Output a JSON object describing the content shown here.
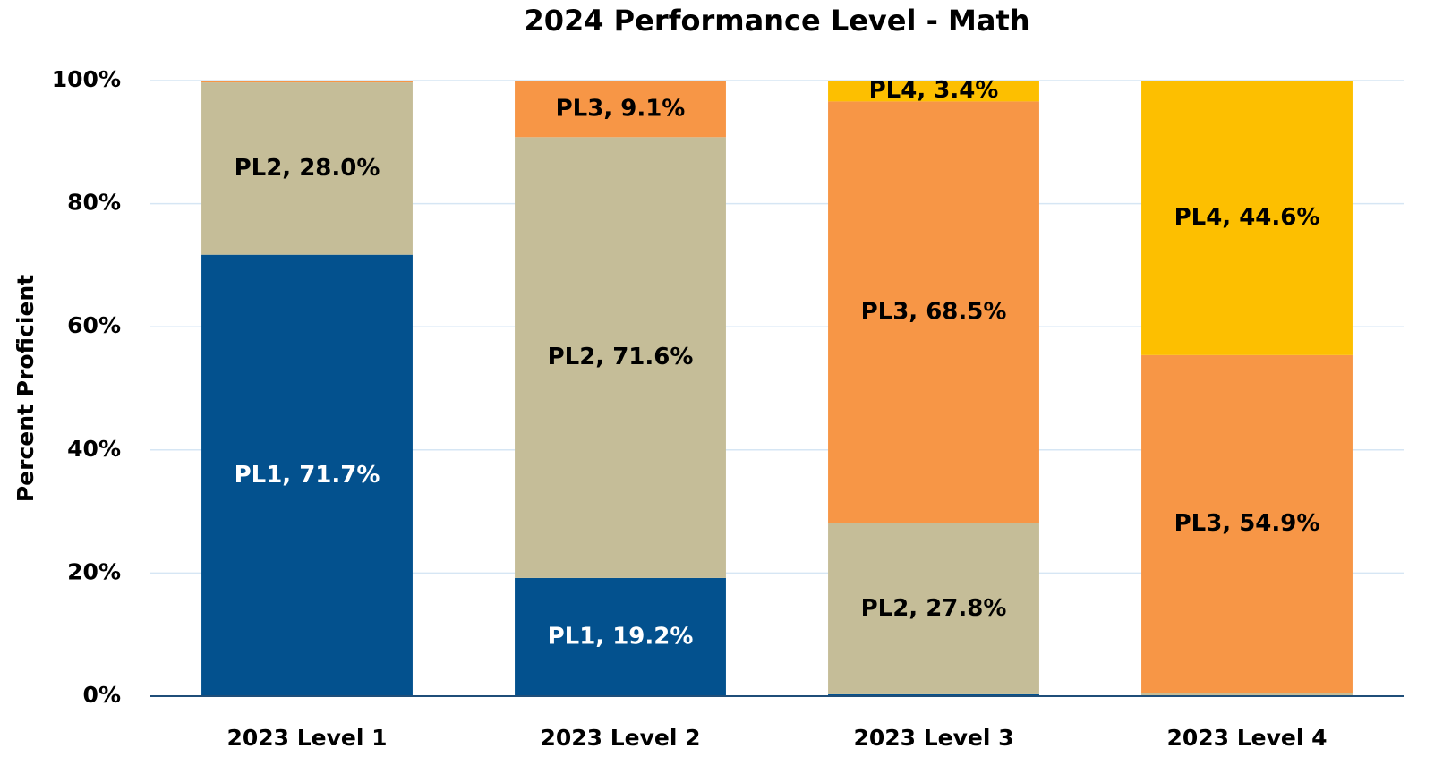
{
  "chart_data": {
    "type": "stacked_bar",
    "title": "2024 Performance Level - Math",
    "y_label": "Percent Proficient",
    "categories": [
      "2023 Level 1",
      "2023 Level 2",
      "2023 Level 3",
      "2023 Level 4"
    ],
    "series": [
      {
        "name": "PL1",
        "color": "#03518e",
        "label_color": "#ffffff",
        "values": [
          71.7,
          19.2,
          0.3,
          0.1
        ],
        "value_labels": [
          "PL1, 71.7%",
          "PL1, 19.2%",
          null,
          null
        ]
      },
      {
        "name": "PL2",
        "color": "#c5bd98",
        "label_color": "#000000",
        "values": [
          28.0,
          71.6,
          27.8,
          0.4
        ],
        "value_labels": [
          "PL2, 28.0%",
          "PL2, 71.6%",
          "PL2, 27.8%",
          null
        ]
      },
      {
        "name": "PL3",
        "color": "#f79646",
        "label_color": "#000000",
        "values": [
          0.3,
          9.1,
          68.5,
          54.9
        ],
        "value_labels": [
          null,
          "PL3, 9.1%",
          "PL3, 68.5%",
          "PL3, 54.9%"
        ]
      },
      {
        "name": "PL4",
        "color": "#fdbf00",
        "label_color": "#000000",
        "values": [
          0,
          0.1,
          3.4,
          44.6
        ],
        "value_labels": [
          null,
          null,
          "PL4, 3.4%",
          "PL4, 44.6%"
        ]
      }
    ],
    "ylim": [
      0,
      100
    ],
    "yticks": [
      {
        "value": 0,
        "label": "0%"
      },
      {
        "value": 20,
        "label": "20%"
      },
      {
        "value": 40,
        "label": "40%"
      },
      {
        "value": 60,
        "label": "60%"
      },
      {
        "value": 80,
        "label": "80%"
      },
      {
        "value": 100,
        "label": "100%"
      }
    ],
    "grid": true
  }
}
